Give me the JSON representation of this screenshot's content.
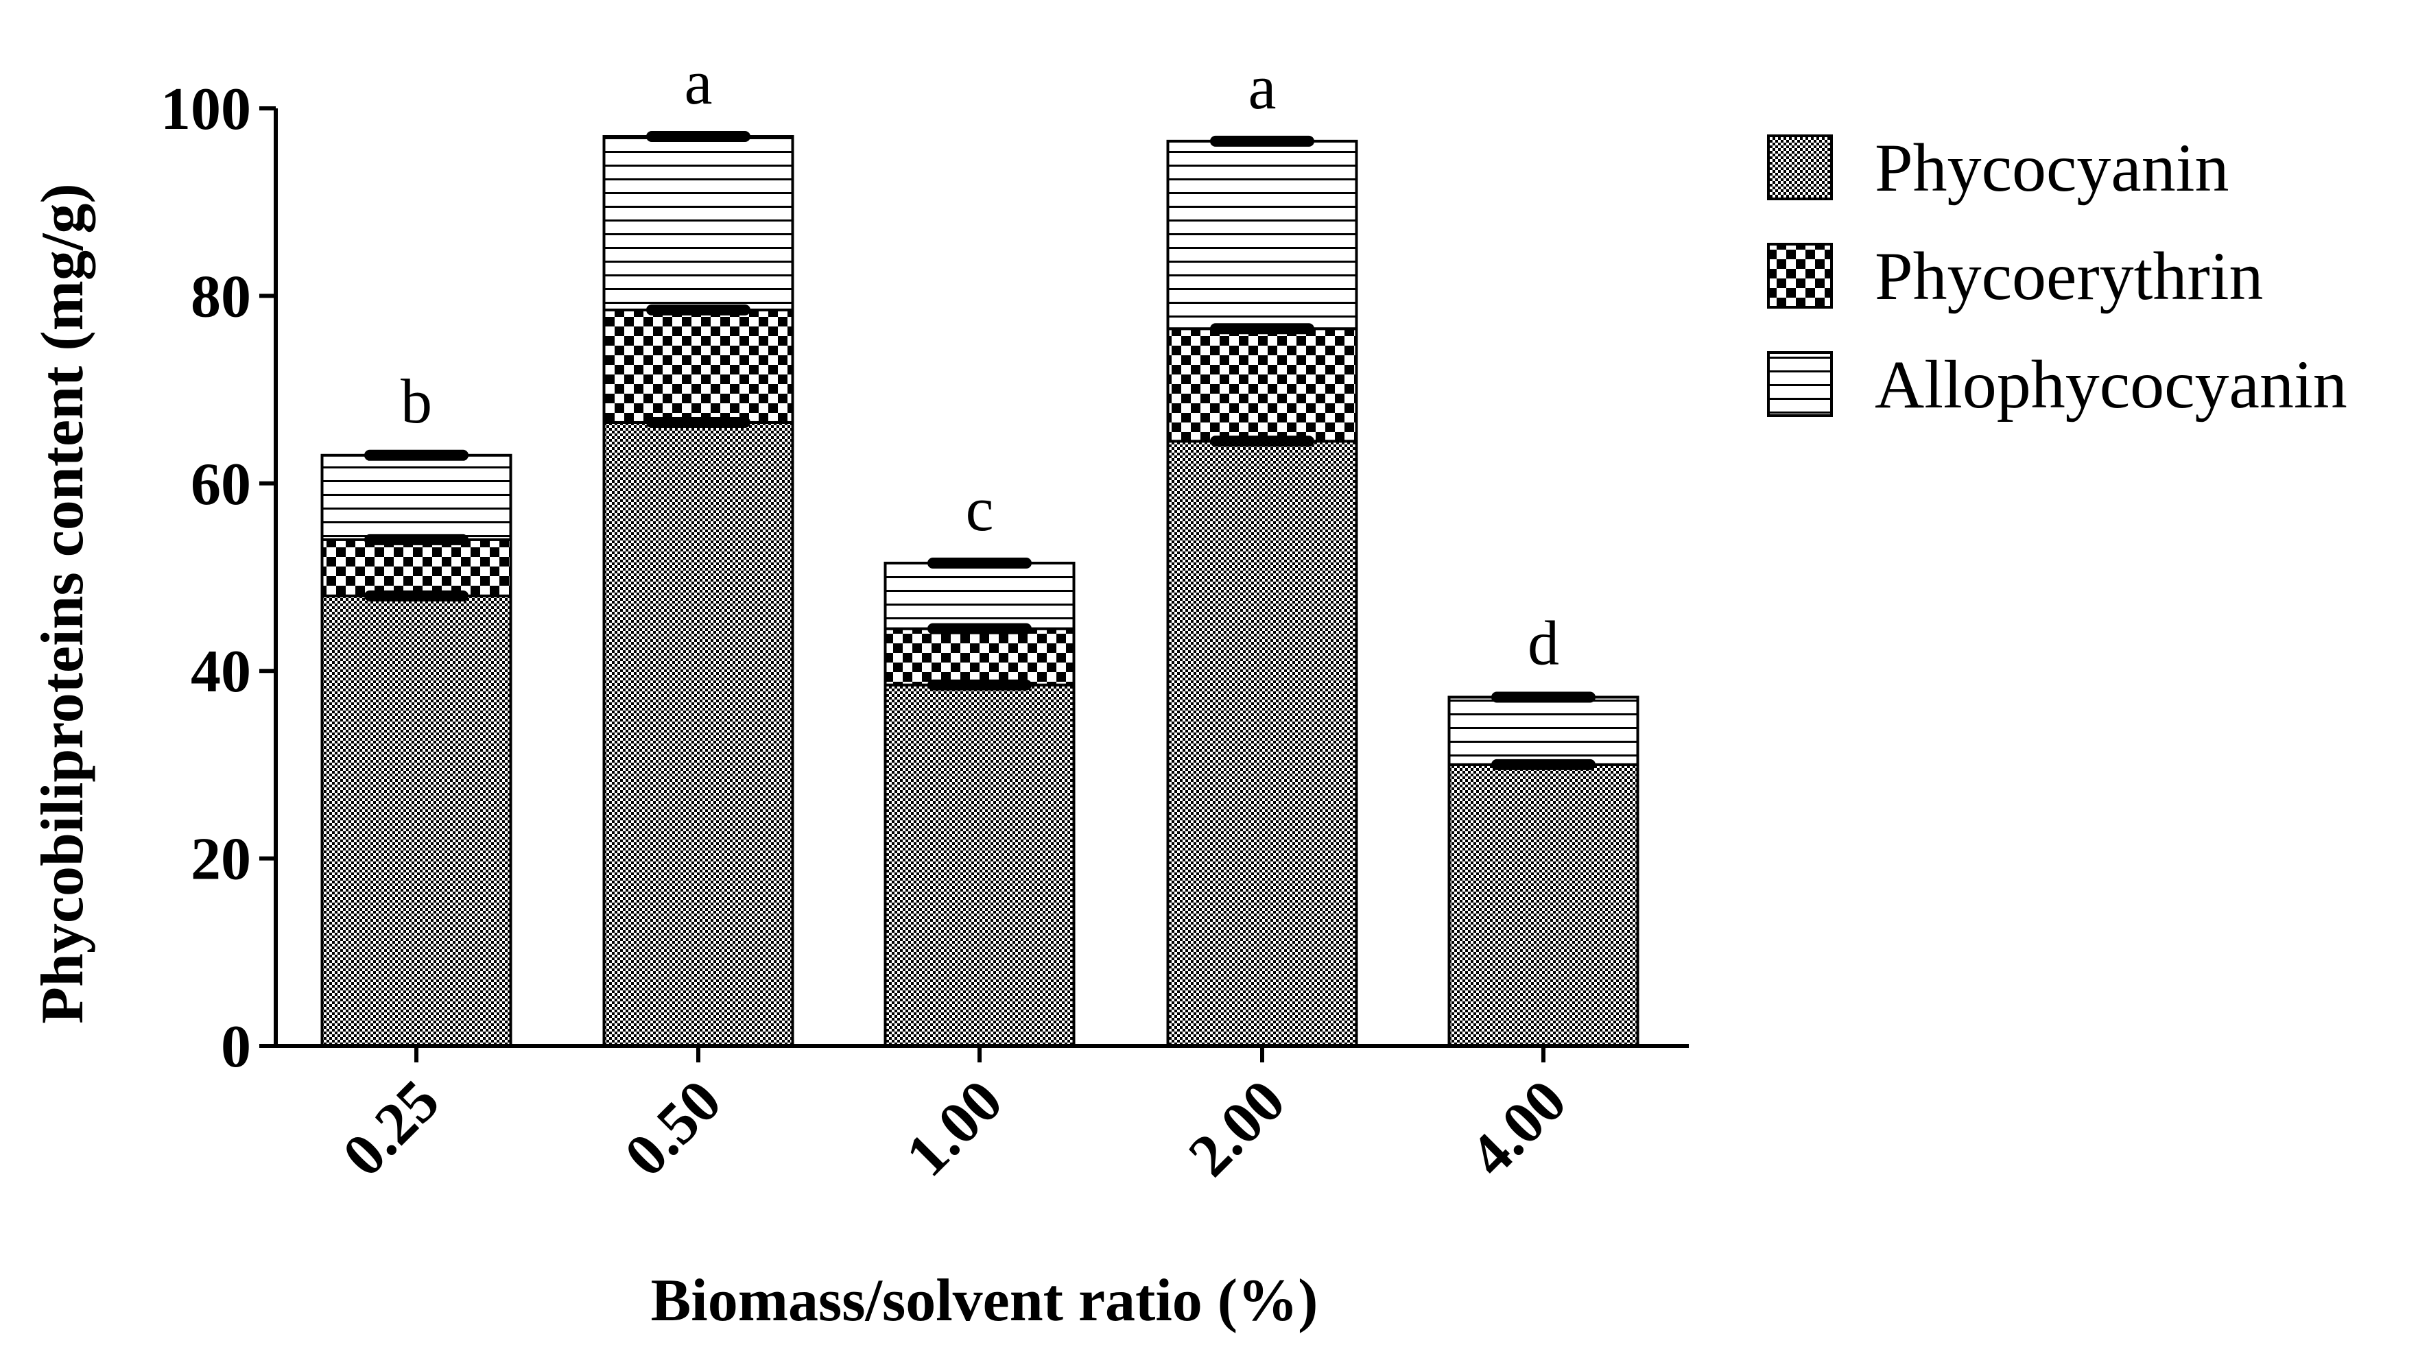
{
  "chart_data": {
    "type": "stacked-bar",
    "categories": [
      "0.25",
      "0.50",
      "1.00",
      "2.00",
      "4.00"
    ],
    "series": [
      {
        "name": "Phycocyanin",
        "pattern": "phycocyanin",
        "values": [
          48,
          66.5,
          38.5,
          64.5,
          30
        ]
      },
      {
        "name": "Phycoerythrin",
        "pattern": "phycoerythrin",
        "values": [
          6,
          12,
          6,
          12,
          0
        ]
      },
      {
        "name": "Allophycocyanin",
        "pattern": "allophycocyanin",
        "values": [
          9,
          18.5,
          7,
          20,
          7.2
        ]
      }
    ],
    "error_bar_values": [
      [
        48,
        54,
        63
      ],
      [
        66.5,
        78.5,
        97
      ],
      [
        38.5,
        44.5,
        51.5
      ],
      [
        64.5,
        76.5,
        96.5
      ],
      [
        30,
        30,
        37.2
      ]
    ],
    "significance_letters": [
      "b",
      "a",
      "c",
      "a",
      "d"
    ],
    "ylabel": "Phycobiliproteins content (mg/g)",
    "xlabel": "Biomass/solvent ratio (%)",
    "ylim": [
      0,
      100
    ],
    "yticks": [
      0,
      20,
      40,
      60,
      80,
      100
    ],
    "legend_position": "top-right",
    "colors": {
      "ink": "#000000",
      "background": "#ffffff"
    }
  }
}
